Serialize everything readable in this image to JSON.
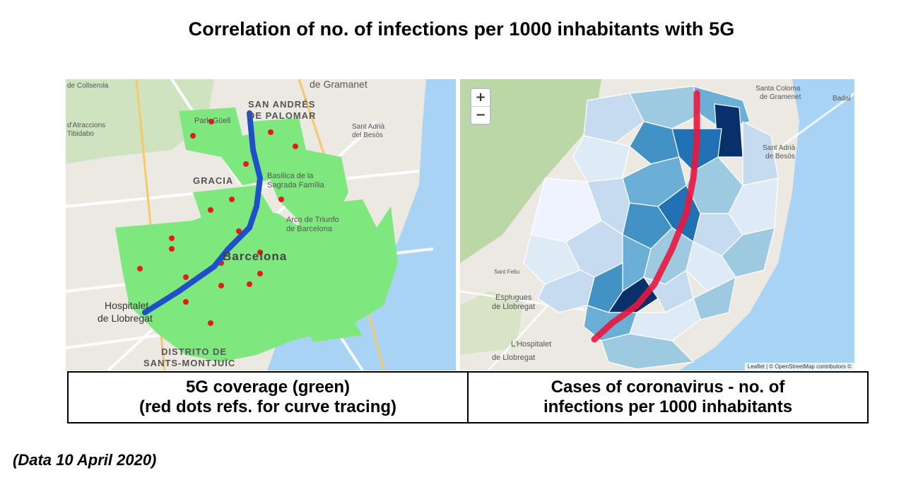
{
  "title": "Correlation of no. of infections per 1000 inhabitants with 5G",
  "left_map": {
    "caption_line1": "5G coverage (green)",
    "caption_line2": "(red dots refs. for curve tracing)",
    "labels": {
      "gramanet": "de Gramanet",
      "san_andres_1": "SAN ANDRÉS",
      "san_andres_2": "DE PALOMAR",
      "sant_adria_1": "Sant Adrià",
      "sant_adria_2": "del Besòs",
      "gracia": "GRACIA",
      "park_guell": "Park Güell",
      "tibidabo_1": "d'Atraccions",
      "tibidabo_2": "Tibidabo",
      "collserola": "de Collserola",
      "basilica_1": "Basílica de la",
      "basilica_2": "Sagrada Família",
      "arco_1": "Arco de Triunfo",
      "arco_2": "de Barcelona",
      "barcelona": "Barcelona",
      "hospitalet_1": "Hospitalet",
      "hospitalet_2": "de Llobregat",
      "sants_1": "DISTRITO DE",
      "sants_2": "SANTS-MONTJUÏC"
    },
    "colors": {
      "coverage": "#7ee87e",
      "curve": "#1f4fc9",
      "dots": "#e31b1b",
      "sea": "#a9d3f5"
    }
  },
  "right_map": {
    "caption_line1": "Cases of coronavirus - no. of",
    "caption_line2": "infections per 1000 inhabitants",
    "zoom_in": "+",
    "zoom_out": "−",
    "attribution": "Leaflet | © OpenStreetMap contributors ©",
    "labels": {
      "santa_coloma_1": "Santa Coloma",
      "santa_coloma_2": "de Gramenet",
      "badalona": "Badal",
      "sant_adria_1": "Sant Adrià",
      "sant_adria_2": "de Besòs",
      "esplugues_1": "Esplugues",
      "esplugues_2": "de Llobregat",
      "hospitalet_1": "L'Hospitalet",
      "hospitalet_2": "de Llobregat",
      "sant_feliu": "Sant Feliu"
    },
    "colors": {
      "curve": "#e8173f",
      "choropleth_light": "#dbe9f6",
      "choropleth_dark": "#08306b"
    }
  },
  "date_note": "(Data 10 April 2020)"
}
